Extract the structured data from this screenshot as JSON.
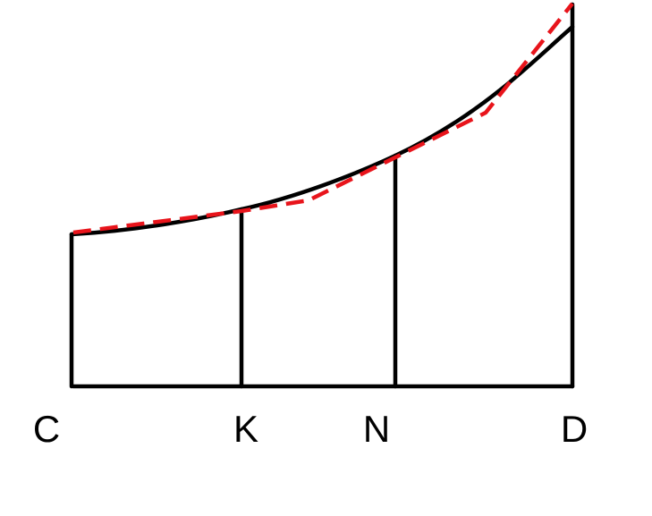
{
  "labels": {
    "c": "C",
    "k": "K",
    "n": "N",
    "d": "D"
  },
  "colors": {
    "stroke": "#000000",
    "dashed_curve": "#e8141b",
    "background": "#ffffff"
  }
}
